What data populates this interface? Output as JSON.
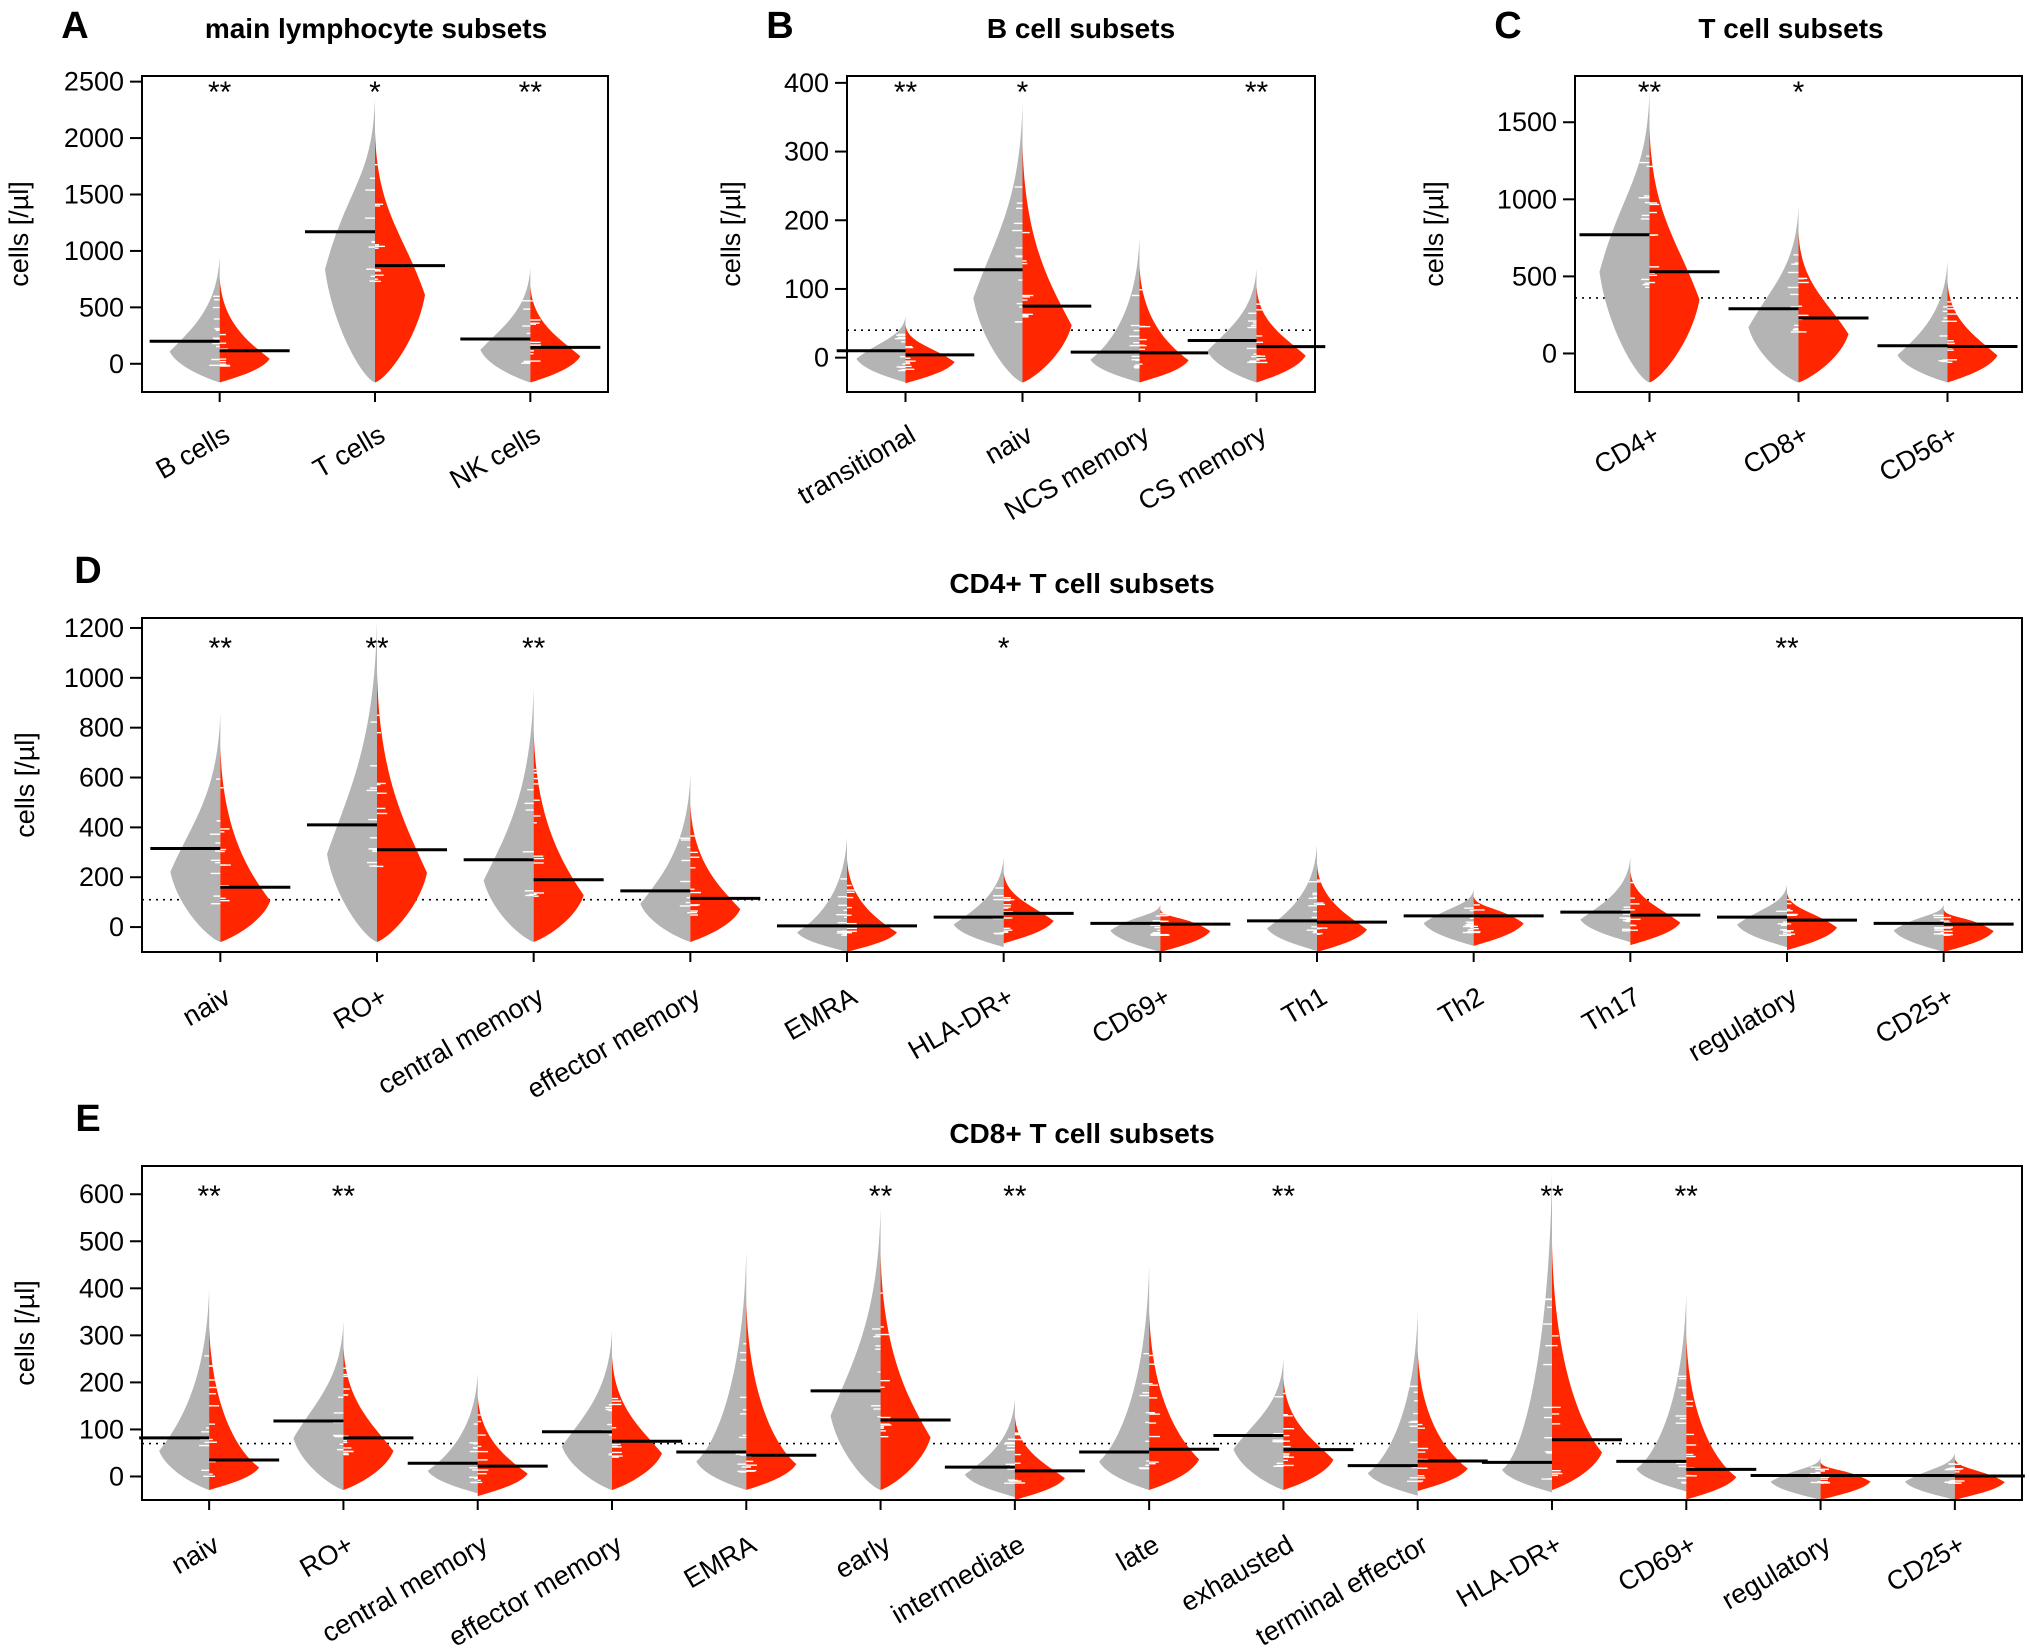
{
  "colors": {
    "group_a": "#b4b4b4",
    "group_b": "#ff2600",
    "median_line": "#000000",
    "threshold_line": "#000000",
    "axis": "#000000"
  },
  "chart_data": [
    {
      "panel": "A",
      "type": "violin",
      "title": "main lymphocyte subsets",
      "ylabel": "cells [/µl]",
      "ylim": [
        -250,
        2550
      ],
      "yticks": [
        0,
        500,
        1000,
        1500,
        2000,
        2500
      ],
      "threshold": null,
      "series": [
        {
          "name": "gray group",
          "color": "#b4b4b4"
        },
        {
          "name": "red group",
          "color": "#ff2600"
        }
      ],
      "categories": [
        "B cells",
        "T cells",
        "NK cells"
      ],
      "median_gray": [
        200,
        1170,
        220
      ],
      "median_red": [
        115,
        870,
        145
      ],
      "max": [
        950,
        2350,
        850
      ],
      "significance": [
        "**",
        "*",
        "**"
      ]
    },
    {
      "panel": "B",
      "type": "violin",
      "title": "B cell subsets",
      "ylabel": "cells [/µl]",
      "ylim": [
        -50,
        410
      ],
      "yticks": [
        0,
        100,
        200,
        300,
        400
      ],
      "threshold": 40,
      "series": [
        {
          "name": "gray group",
          "color": "#b4b4b4"
        },
        {
          "name": "red group",
          "color": "#ff2600"
        }
      ],
      "categories": [
        "transitional",
        "naiv",
        "NCS memory",
        "CS memory"
      ],
      "median_gray": [
        10,
        128,
        8,
        25
      ],
      "median_red": [
        4,
        75,
        7,
        16
      ],
      "max": [
        60,
        370,
        175,
        130
      ],
      "significance": [
        "**",
        "*",
        "",
        "**"
      ]
    },
    {
      "panel": "C",
      "type": "violin",
      "title": "T cell subsets",
      "ylabel": "cells [/µl]",
      "ylim": [
        -250,
        1800
      ],
      "yticks": [
        0,
        500,
        1000,
        1500
      ],
      "threshold": 360,
      "series": [
        {
          "name": "gray group",
          "color": "#b4b4b4"
        },
        {
          "name": "red group",
          "color": "#ff2600"
        }
      ],
      "categories": [
        "CD4+",
        "CD8+",
        "CD56+"
      ],
      "median_gray": [
        770,
        290,
        50
      ],
      "median_red": [
        530,
        230,
        45
      ],
      "max": [
        1700,
        950,
        600
      ],
      "significance": [
        "**",
        "*",
        ""
      ]
    },
    {
      "panel": "D",
      "type": "violin",
      "title": "CD4+ T cell subsets",
      "ylabel": "cells [/µl]",
      "ylim": [
        -100,
        1240
      ],
      "yticks": [
        0,
        200,
        400,
        600,
        800,
        1000,
        1200
      ],
      "threshold": 110,
      "series": [
        {
          "name": "gray group",
          "color": "#b4b4b4"
        },
        {
          "name": "red group",
          "color": "#ff2600"
        }
      ],
      "categories": [
        "naiv",
        "RO+",
        "central memory",
        "effector memory",
        "EMRA",
        "HLA-DR+",
        "CD69+",
        "Th1",
        "Th2",
        "Th17",
        "regulatory",
        "CD25+"
      ],
      "median_gray": [
        315,
        410,
        270,
        145,
        5,
        40,
        15,
        25,
        45,
        60,
        40,
        15
      ],
      "median_red": [
        160,
        310,
        190,
        115,
        5,
        55,
        12,
        20,
        45,
        48,
        28,
        12
      ],
      "max": [
        860,
        1230,
        960,
        610,
        360,
        280,
        90,
        330,
        150,
        280,
        170,
        90
      ],
      "significance": [
        "**",
        "**",
        "**",
        "",
        "",
        "*",
        "",
        "",
        "",
        "",
        "**",
        ""
      ]
    },
    {
      "panel": "E",
      "type": "violin",
      "title": "CD8+ T cell subsets",
      "ylabel": "cells [/µl]",
      "ylim": [
        -50,
        660
      ],
      "yticks": [
        0,
        100,
        200,
        300,
        400,
        500,
        600
      ],
      "threshold": 70,
      "series": [
        {
          "name": "gray group",
          "color": "#b4b4b4"
        },
        {
          "name": "red group",
          "color": "#ff2600"
        }
      ],
      "categories": [
        "naiv",
        "RO+",
        "central memory",
        "effector memory",
        "EMRA",
        "early",
        "intermediate",
        "late",
        "exhausted",
        "terminal effector",
        "HLA-DR+",
        "CD69+",
        "regulatory",
        "CD25+"
      ],
      "median_gray": [
        82,
        118,
        28,
        95,
        52,
        182,
        20,
        52,
        87,
        23,
        30,
        32,
        2,
        2
      ],
      "median_red": [
        35,
        82,
        22,
        75,
        45,
        120,
        12,
        58,
        57,
        33,
        78,
        15,
        2,
        1
      ],
      "max": [
        400,
        330,
        220,
        310,
        480,
        570,
        165,
        450,
        250,
        350,
        650,
        390,
        40,
        50
      ],
      "significance": [
        "**",
        "**",
        "",
        "",
        "",
        "**",
        "**",
        "",
        "**",
        "",
        "**",
        "**",
        "",
        ""
      ]
    }
  ]
}
